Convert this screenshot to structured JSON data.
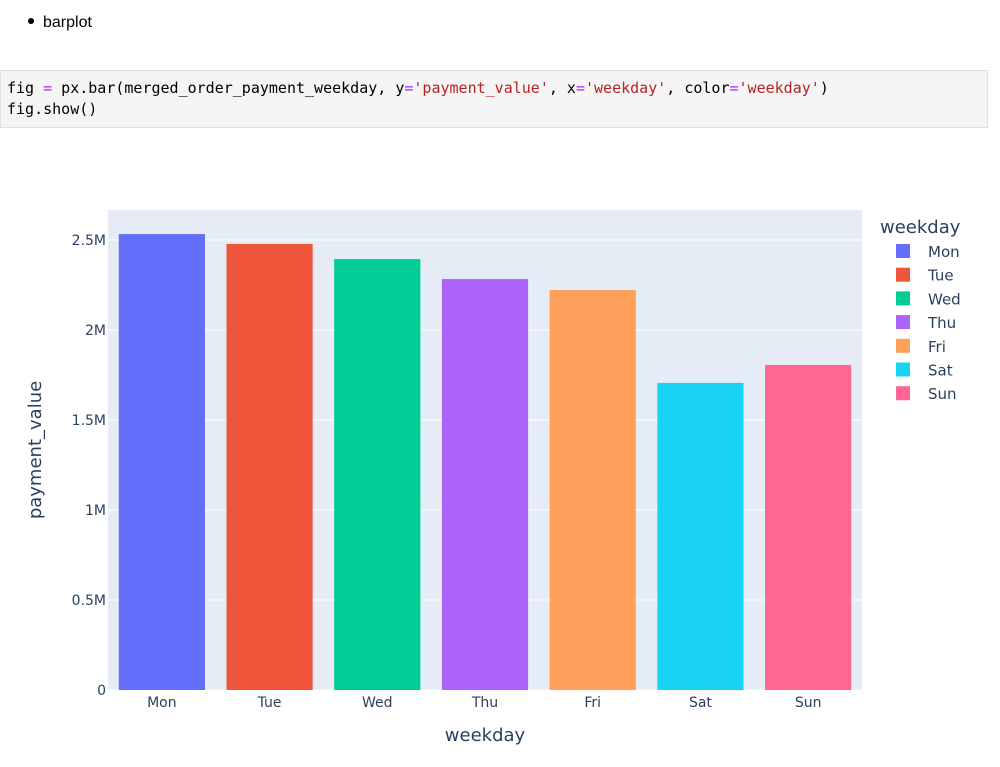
{
  "bullet": "barplot",
  "code": [
    [
      "fig ",
      "=",
      " px.bar(merged_order_payment_weekday, y",
      "=",
      "'payment_value'",
      ", x",
      "=",
      "'weekday'",
      ", color",
      "=",
      "'weekday'",
      ")"
    ],
    [
      "fig.show()"
    ]
  ],
  "chart_data": {
    "type": "bar",
    "categories": [
      "Mon",
      "Tue",
      "Wed",
      "Thu",
      "Fri",
      "Sat",
      "Sun"
    ],
    "values": [
      2533000,
      2478000,
      2394000,
      2283000,
      2222000,
      1706000,
      1806000
    ],
    "colors": [
      "#636efa",
      "#ef553b",
      "#00cc96",
      "#ab63fa",
      "#ffa15a",
      "#19d3f3",
      "#ff6692"
    ],
    "x_label": "weekday",
    "y_label": "payment_value",
    "legend_title": "weekday",
    "ylim": [
      0,
      2666667
    ],
    "yticks": [
      0,
      {
        "value": 500000,
        "label": "0.5M"
      },
      {
        "value": 1000000,
        "label": "1M"
      },
      {
        "value": 1500000,
        "label": "1.5M"
      },
      {
        "value": 2000000,
        "label": "2M"
      },
      {
        "value": 2500000,
        "label": "2.5M"
      }
    ],
    "grid": true,
    "legend": "right"
  }
}
